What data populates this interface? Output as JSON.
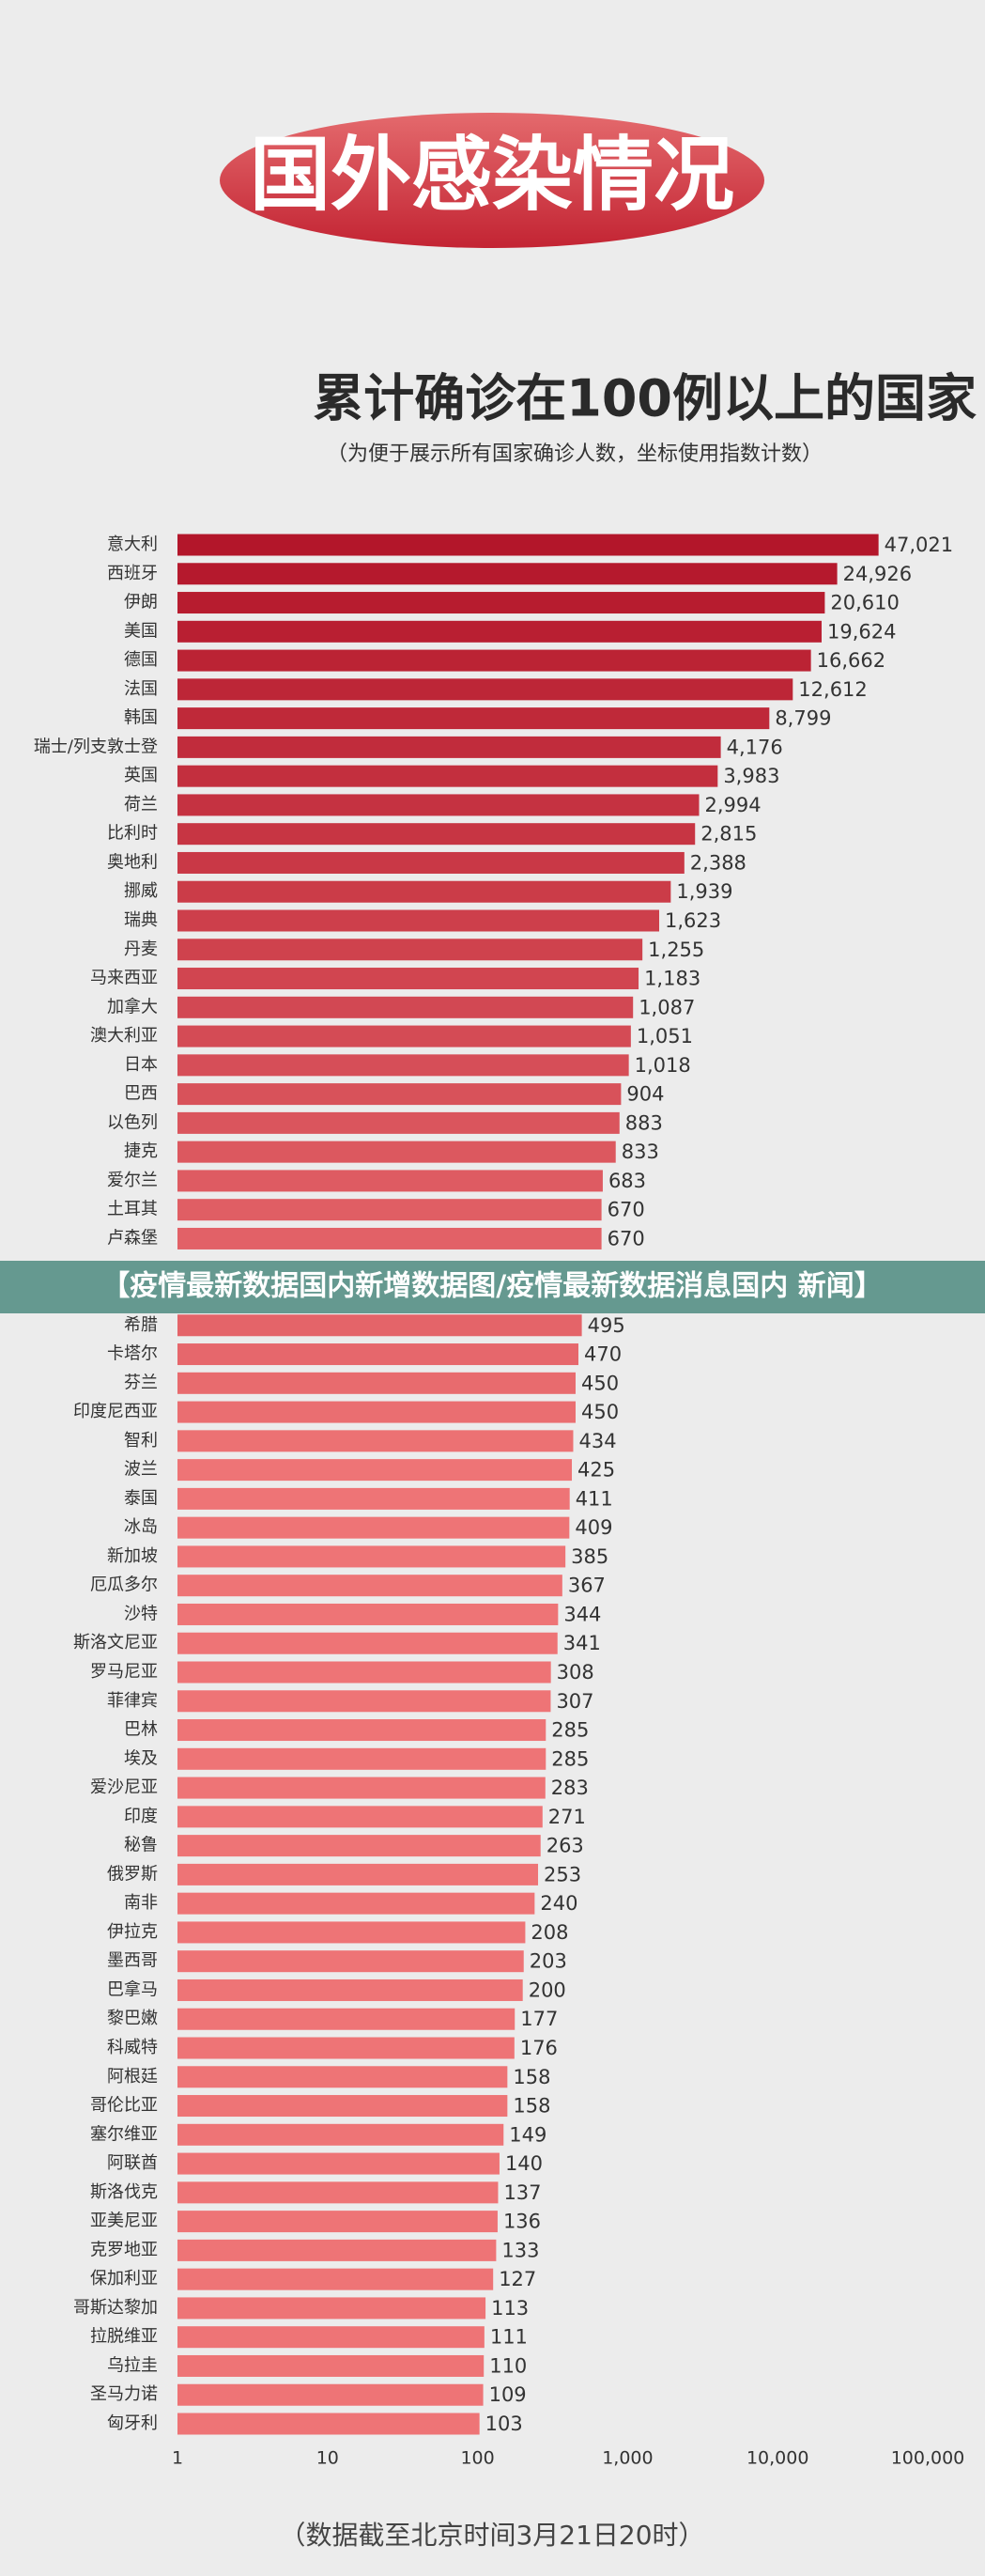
{
  "chart_data": {
    "type": "bar",
    "orientation": "horizontal",
    "header": "国外感染情况",
    "title": "累计确诊在100例以上的国家",
    "subtitle": "（为便于展示所有国家确诊人数，坐标使用指数计数）",
    "footer": "（数据截至北京时间3月21日20时）",
    "categories": [
      "意大利",
      "西班牙",
      "伊朗",
      "美国",
      "德国",
      "法国",
      "韩国",
      "瑞士/列支敦士登",
      "英国",
      "荷兰",
      "比利时",
      "奥地利",
      "挪威",
      "瑞典",
      "丹麦",
      "马来西亚",
      "加拿大",
      "澳大利亚",
      "日本",
      "巴西",
      "以色列",
      "捷克",
      "爱尔兰",
      "土耳其",
      "卢森堡",
      "希腊",
      "卡塔尔",
      "芬兰",
      "印度尼西亚",
      "智利",
      "波兰",
      "泰国",
      "冰岛",
      "新加坡",
      "厄瓜多尔",
      "沙特",
      "斯洛文尼亚",
      "罗马尼亚",
      "菲律宾",
      "巴林",
      "埃及",
      "爱沙尼亚",
      "印度",
      "秘鲁",
      "俄罗斯",
      "南非",
      "伊拉克",
      "墨西哥",
      "巴拿马",
      "黎巴嫩",
      "科威特",
      "阿根廷",
      "哥伦比亚",
      "塞尔维亚",
      "阿联酋",
      "斯洛伐克",
      "亚美尼亚",
      "克罗地亚",
      "保加利亚",
      "哥斯达黎加",
      "拉脱维亚",
      "乌拉圭",
      "圣马力诺",
      "匈牙利"
    ],
    "values": [
      47021,
      24926,
      20610,
      19624,
      16662,
      12612,
      8799,
      4176,
      3983,
      2994,
      2815,
      2388,
      1939,
      1623,
      1255,
      1183,
      1087,
      1051,
      1018,
      904,
      883,
      833,
      683,
      670,
      670,
      495,
      470,
      450,
      450,
      434,
      425,
      411,
      409,
      385,
      367,
      344,
      341,
      308,
      307,
      285,
      285,
      283,
      271,
      263,
      253,
      240,
      208,
      203,
      200,
      177,
      176,
      158,
      158,
      149,
      140,
      137,
      136,
      133,
      127,
      113,
      111,
      110,
      109,
      103
    ],
    "value_labels": [
      "47,021",
      "24,926",
      "20,610",
      "19,624",
      "16,662",
      "12,612",
      "8,799",
      "4,176",
      "3,983",
      "2,994",
      "2,815",
      "2,388",
      "1,939",
      "1,623",
      "1,255",
      "1,183",
      "1,087",
      "1,051",
      "1,018",
      "904",
      "883",
      "833",
      "683",
      "670",
      "670",
      "495",
      "470",
      "450",
      "450",
      "434",
      "425",
      "411",
      "409",
      "385",
      "367",
      "344",
      "341",
      "308",
      "307",
      "285",
      "285",
      "283",
      "271",
      "263",
      "253",
      "240",
      "208",
      "203",
      "200",
      "177",
      "176",
      "158",
      "158",
      "149",
      "140",
      "137",
      "136",
      "133",
      "127",
      "113",
      "111",
      "110",
      "109",
      "103"
    ],
    "colors": [
      "#b3162a",
      "#ee7476"
    ],
    "log_scale": true,
    "xlim": [
      1,
      100000
    ],
    "xticks": [
      1,
      10,
      100,
      {
        "value": 1000,
        "label": "1,000"
      },
      {
        "value": 10000,
        "label": "10,000"
      },
      {
        "value": 100000,
        "label": "100,000"
      }
    ]
  },
  "banner": "【疫情最新数据国内新增数据图/疫情最新数据消息国内 新闻】"
}
